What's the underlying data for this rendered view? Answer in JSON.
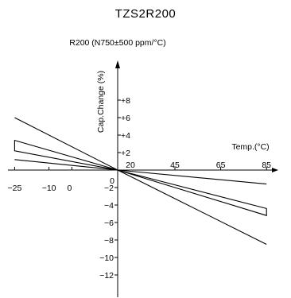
{
  "chart_data": {
    "type": "line",
    "title": "TZS2R200",
    "subtitle": "R200 (N750±500 ppm/°C)",
    "xlabel": "Temp.(°C)",
    "ylabel": "Cap.Change (%)",
    "x_ticks": [
      {
        "value": -25,
        "label": "−25"
      },
      {
        "value": -10,
        "label": "−10"
      },
      {
        "value": 0,
        "label": "0"
      },
      {
        "value": 20,
        "label": "20"
      },
      {
        "value": 45,
        "label": "45"
      },
      {
        "value": 65,
        "label": "65"
      },
      {
        "value": 85,
        "label": "85"
      }
    ],
    "y_ticks": [
      {
        "value": 8,
        "label": "+8"
      },
      {
        "value": 6,
        "label": "+6"
      },
      {
        "value": 4,
        "label": "+4"
      },
      {
        "value": 2,
        "label": "+2"
      },
      {
        "value": 0,
        "label": "0"
      },
      {
        "value": -2,
        "label": "−2"
      },
      {
        "value": -4,
        "label": "−4"
      },
      {
        "value": -6,
        "label": "−6"
      },
      {
        "value": -8,
        "label": "−8"
      },
      {
        "value": -10,
        "label": "−10"
      },
      {
        "value": -12,
        "label": "−12"
      }
    ],
    "xlim": [
      -28,
      92
    ],
    "ylim": [
      -14,
      11
    ],
    "grid": false,
    "series": [
      {
        "values": [
          [
            -25,
            6.0
          ],
          [
            20,
            0
          ],
          [
            85,
            -8.5
          ]
        ]
      },
      {
        "values": [
          [
            -25,
            1.2
          ],
          [
            20,
            0
          ],
          [
            85,
            -1.6
          ]
        ]
      }
    ],
    "bands": [
      {
        "upper": [
          [
            -25,
            3.4
          ],
          [
            20,
            0
          ],
          [
            85,
            -4.4
          ]
        ],
        "lower": [
          [
            -25,
            2.2
          ],
          [
            20,
            0
          ],
          [
            85,
            -5.2
          ]
        ]
      }
    ]
  }
}
